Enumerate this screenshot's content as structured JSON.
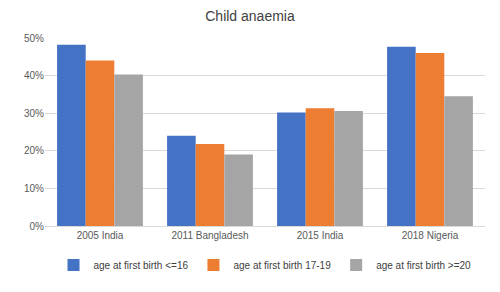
{
  "chart_data": {
    "type": "bar",
    "title": "Child anaemia",
    "categories": [
      "2005 India",
      "2011 Bangladesh",
      "2015 India",
      "2018 Nigeria"
    ],
    "series": [
      {
        "name": "age at first birth <=16",
        "color": "#4472c4",
        "values": [
          48.2,
          24.0,
          30.2,
          47.7
        ]
      },
      {
        "name": "age at first birth 17-19",
        "color": "#ed7d31",
        "values": [
          44.0,
          21.8,
          31.3,
          46.0
        ]
      },
      {
        "name": "age at first birth >=20",
        "color": "#a5a5a5",
        "values": [
          40.3,
          19.0,
          30.6,
          34.5
        ]
      }
    ],
    "ylim": [
      0,
      50
    ],
    "yticks": [
      {
        "value": 0,
        "label": "0%"
      },
      {
        "value": 10,
        "label": "10%"
      },
      {
        "value": 20,
        "label": "20%"
      },
      {
        "value": 30,
        "label": "30%"
      },
      {
        "value": 40,
        "label": "40%"
      },
      {
        "value": 50,
        "label": "50%"
      }
    ],
    "grid": true,
    "legend": "bottom"
  }
}
